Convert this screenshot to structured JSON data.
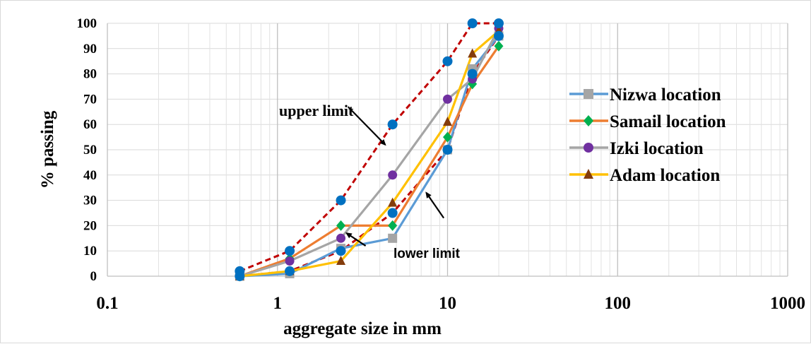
{
  "chart_data": {
    "type": "line",
    "xscale": "log",
    "xlim": [
      0.1,
      1000
    ],
    "ylim": [
      0,
      100
    ],
    "x_ticks": [
      "0.1",
      "1",
      "10",
      "100",
      "1000"
    ],
    "y_ticks": [
      "0",
      "10",
      "20",
      "30",
      "40",
      "50",
      "60",
      "70",
      "80",
      "90",
      "100"
    ],
    "xlabel": "aggregate size in mm",
    "ylabel": "% passing",
    "grid": true,
    "legend_position": "right",
    "series": [
      {
        "name": "Nizwa location",
        "color": "#5b9bd5",
        "marker": "square",
        "marker_color": "#a5a5a5",
        "x": [
          0.6,
          1.18,
          2.36,
          4.75,
          10,
          14,
          20
        ],
        "y": [
          0,
          1,
          11,
          15,
          50,
          82,
          95
        ]
      },
      {
        "name": "Samail location",
        "color": "#ed7d31",
        "marker": "diamond",
        "marker_color": "#00b050",
        "x": [
          0.6,
          1.18,
          2.36,
          4.75,
          10,
          14,
          20
        ],
        "y": [
          0,
          7,
          20,
          20,
          55,
          76,
          91
        ]
      },
      {
        "name": "Izki location",
        "color": "#a5a5a5",
        "marker": "circle",
        "marker_color": "#7030a0",
        "x": [
          0.6,
          1.18,
          2.36,
          4.75,
          10,
          14,
          20
        ],
        "y": [
          0,
          6,
          15,
          40,
          70,
          78,
          98
        ]
      },
      {
        "name": "Adam location",
        "color": "#ffc000",
        "marker": "triangle",
        "marker_color": "#843c0c",
        "x": [
          0.6,
          1.18,
          2.36,
          4.75,
          10,
          14,
          20
        ],
        "y": [
          0,
          2,
          6,
          29,
          61,
          88,
          97
        ]
      }
    ],
    "limit_curves": [
      {
        "line_color": "#c00000",
        "dash": true,
        "marker": "circle",
        "marker_color": "#0070c0",
        "x": [
          0.6,
          1.18,
          2.36,
          4.75,
          10,
          14,
          20
        ],
        "y": [
          2,
          10,
          30,
          60,
          85,
          100,
          100
        ]
      },
      {
        "line_color": "#c00000",
        "dash": true,
        "marker": "circle",
        "marker_color": "#0070c0",
        "x": [
          0.6,
          1.18,
          2.36,
          4.75,
          10,
          14,
          20
        ],
        "y": [
          0,
          2,
          10,
          25,
          50,
          80,
          95
        ]
      }
    ],
    "annotations": [
      {
        "text": "upper limit",
        "target_x": 4.3,
        "target_y": 52,
        "from_x": 2.6,
        "from_y": 67
      },
      {
        "text": "lower limit",
        "target_x": 2.55,
        "target_y": 17,
        "from_x": 3.3,
        "from_y": 12
      },
      {
        "text_ref": "lower limit",
        "target_x": 7.5,
        "target_y": 33,
        "from_x": 9.5,
        "from_y": 23
      }
    ]
  }
}
